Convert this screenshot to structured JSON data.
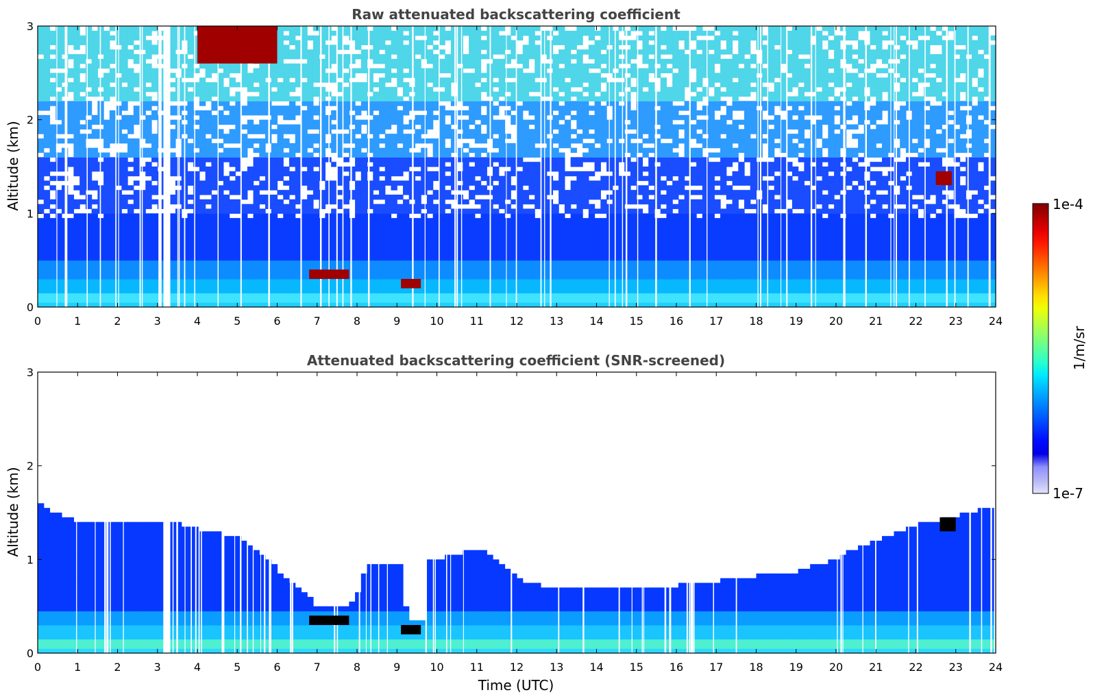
{
  "chart_data": [
    {
      "type": "heatmap",
      "title": "Raw attenuated backscattering coefficient",
      "xlabel": "",
      "ylabel": "Altitude (km)",
      "xlim": [
        0,
        24
      ],
      "ylim": [
        0,
        3
      ],
      "x_ticks": [
        "0",
        "1",
        "2",
        "3",
        "4",
        "5",
        "6",
        "7",
        "8",
        "9",
        "10",
        "11",
        "12",
        "13",
        "14",
        "15",
        "16",
        "17",
        "18",
        "19",
        "20",
        "21",
        "22",
        "23",
        "24"
      ],
      "y_ticks": [
        "0",
        "1",
        "2",
        "3"
      ],
      "colorscale": "jet, log",
      "features": [
        {
          "time_utc": [
            6.8,
            7.8
          ],
          "altitude_km": [
            0.3,
            0.4
          ],
          "value": "1e-4"
        },
        {
          "time_utc": [
            9.1,
            9.6
          ],
          "altitude_km": [
            0.2,
            0.3
          ],
          "value": "1e-4"
        },
        {
          "time_utc": [
            22.5,
            22.9
          ],
          "altitude_km": [
            1.3,
            1.45
          ],
          "value": "1e-4"
        },
        {
          "time_utc": [
            4.0,
            6.0
          ],
          "altitude_km": [
            2.6,
            3.0
          ],
          "value": "1e-4"
        }
      ]
    },
    {
      "type": "heatmap",
      "title": "Attenuated backscattering coefficient (SNR-screened)",
      "xlabel": "Time (UTC)",
      "ylabel": "Altitude (km)",
      "xlim": [
        0,
        24
      ],
      "ylim": [
        0,
        3
      ],
      "x_ticks": [
        "0",
        "1",
        "2",
        "3",
        "4",
        "5",
        "6",
        "7",
        "8",
        "9",
        "10",
        "11",
        "12",
        "13",
        "14",
        "15",
        "16",
        "17",
        "18",
        "19",
        "20",
        "21",
        "22",
        "23",
        "24"
      ],
      "y_ticks": [
        "0",
        "1",
        "2",
        "3"
      ],
      "colorscale": "jet, log",
      "boundary_layer_top_km": [
        {
          "t": 0,
          "h": 1.55
        },
        {
          "t": 1,
          "h": 1.35
        },
        {
          "t": 2,
          "h": 1.35
        },
        {
          "t": 3,
          "h": 1.4
        },
        {
          "t": 4,
          "h": 1.3
        },
        {
          "t": 5,
          "h": 1.2
        },
        {
          "t": 6,
          "h": 0.85
        },
        {
          "t": 7,
          "h": 0.45
        },
        {
          "t": 7.8,
          "h": 0.5
        },
        {
          "t": 8.2,
          "h": 0.9
        },
        {
          "t": 9.0,
          "h": 0.95
        },
        {
          "t": 9.2,
          "h": 0.35
        },
        {
          "t": 9.6,
          "h": 0.35
        },
        {
          "t": 9.7,
          "h": 0.95
        },
        {
          "t": 11,
          "h": 1.1
        },
        {
          "t": 12,
          "h": 0.75
        },
        {
          "t": 13,
          "h": 0.65
        },
        {
          "t": 14,
          "h": 0.65
        },
        {
          "t": 15,
          "h": 0.7
        },
        {
          "t": 16,
          "h": 0.7
        },
        {
          "t": 17,
          "h": 0.75
        },
        {
          "t": 18,
          "h": 0.8
        },
        {
          "t": 19,
          "h": 0.85
        },
        {
          "t": 20,
          "h": 1.0
        },
        {
          "t": 21,
          "h": 1.2
        },
        {
          "t": 22,
          "h": 1.35
        },
        {
          "t": 23,
          "h": 1.45
        },
        {
          "t": 24,
          "h": 1.55
        }
      ]
    }
  ],
  "colorbar": {
    "label": "1/m/sr",
    "max_label": "1e-4",
    "min_label": "1e-7",
    "colors": [
      "#7f0000",
      "#b10000",
      "#e30000",
      "#ff1700",
      "#ff4800",
      "#ff7a00",
      "#ffac00",
      "#ffde00",
      "#eeff08",
      "#bdff39",
      "#8dff6a",
      "#5cff9a",
      "#2bffcb",
      "#00ebff",
      "#00bcff",
      "#0090ff",
      "#0064ff",
      "#0038ff",
      "#000cff",
      "#0000e6",
      "#8f8fff",
      "#b6b6f6",
      "#e2e2fb"
    ]
  }
}
